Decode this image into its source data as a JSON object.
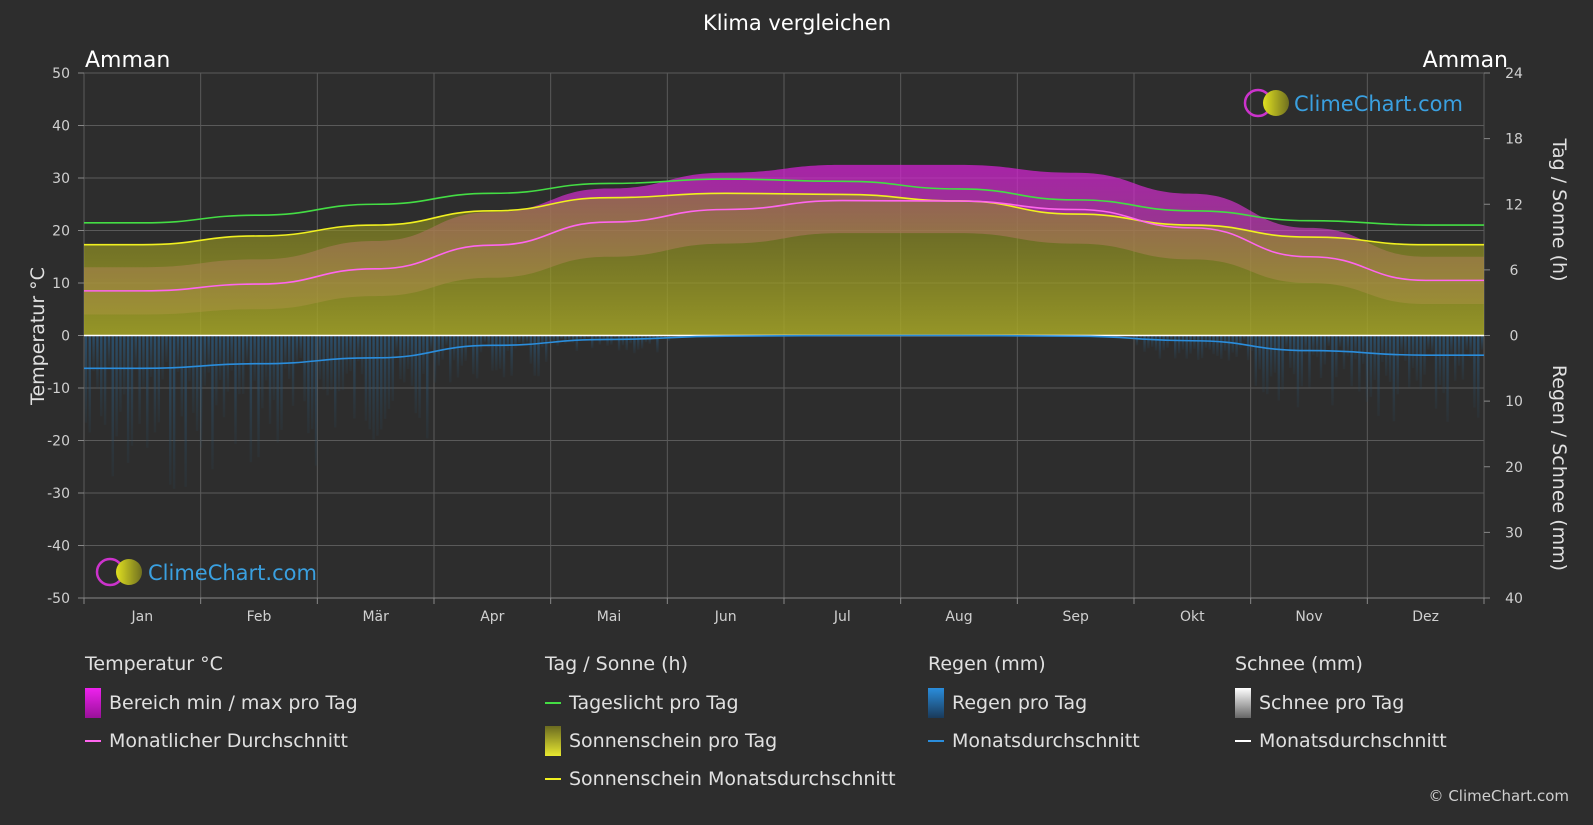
{
  "title": "Klima vergleichen",
  "location_left": "Amman",
  "location_right": "Amman",
  "watermark": "ClimeChart.com",
  "copyright": "© ClimeChart.com",
  "colors": {
    "background": "#2d2d2d",
    "daylight": "#44dd44",
    "sunshine_avg": "#f0f020",
    "temp_avg": "#ff66ee",
    "rain_avg": "#2a8ddc",
    "snow_avg": "#ffffff",
    "temp_range": "#cc22cc",
    "sunshine_fill": "#9a9a22",
    "rain_fill": "#2c5c7c",
    "brand": "#3aa0e0"
  },
  "chart_data": {
    "type": "line",
    "title": "Klima vergleichen",
    "categories": [
      "Jan",
      "Feb",
      "Mär",
      "Apr",
      "Mai",
      "Jun",
      "Jul",
      "Aug",
      "Sep",
      "Okt",
      "Nov",
      "Dez"
    ],
    "y_left": {
      "label": "Temperatur °C",
      "range": [
        -50,
        50
      ],
      "ticks": [
        50,
        40,
        30,
        20,
        10,
        0,
        -10,
        -20,
        -30,
        -40,
        -50
      ]
    },
    "y_right_top": {
      "label": "Tag / Sonne (h)",
      "range": [
        0,
        24
      ],
      "ticks": [
        24,
        18,
        12,
        6,
        0
      ]
    },
    "y_right_bottom": {
      "label": "Regen / Schnee (mm)",
      "range": [
        0,
        40
      ],
      "ticks": [
        0,
        10,
        20,
        30,
        40
      ]
    },
    "grid": true,
    "series": [
      {
        "name": "Tageslicht pro Tag",
        "axis": "hours",
        "values": [
          10.3,
          11.0,
          12.0,
          13.0,
          13.9,
          14.3,
          14.1,
          13.4,
          12.4,
          11.4,
          10.5,
          10.1
        ]
      },
      {
        "name": "Sonnenschein Monatsdurchschnitt",
        "axis": "hours",
        "values": [
          8.3,
          9.1,
          10.1,
          11.4,
          12.6,
          13.0,
          12.9,
          12.3,
          11.1,
          10.1,
          9.0,
          8.3
        ]
      },
      {
        "name": "Monatlicher Durchschnitt",
        "axis": "temp",
        "values": [
          8.5,
          9.8,
          12.7,
          17.2,
          21.6,
          24.0,
          25.7,
          25.6,
          24.0,
          20.5,
          15.0,
          10.5
        ]
      },
      {
        "name": "Regen Monatsdurchschnitt",
        "axis": "rain",
        "values": [
          5.0,
          4.3,
          3.4,
          1.5,
          0.6,
          0.1,
          0.0,
          0.0,
          0.1,
          0.8,
          2.3,
          3.0
        ]
      },
      {
        "name": "Schnee Monatsdurchschnitt",
        "axis": "rain",
        "values": [
          0.1,
          0.1,
          0,
          0,
          0,
          0,
          0,
          0,
          0,
          0,
          0,
          0.05
        ]
      },
      {
        "name": "Temp max",
        "axis": "temp",
        "values": [
          13,
          14.5,
          18,
          23.5,
          28,
          31,
          32.5,
          32.5,
          31,
          27,
          20.5,
          15
        ]
      },
      {
        "name": "Temp min",
        "axis": "temp",
        "values": [
          4,
          5,
          7.5,
          11,
          15,
          17.5,
          19.5,
          19.5,
          17.5,
          14.5,
          10,
          6
        ]
      }
    ]
  },
  "legend": {
    "temp": {
      "title": "Temperatur °C",
      "range": "Bereich min / max pro Tag",
      "avg": "Monatlicher Durchschnitt"
    },
    "sun": {
      "title": "Tag / Sonne (h)",
      "daylight": "Tageslicht pro Tag",
      "sunshine": "Sonnenschein pro Tag",
      "sunavg": "Sonnenschein Monatsdurchschnitt"
    },
    "rain": {
      "title": "Regen (mm)",
      "day": "Regen pro Tag",
      "avg": "Monatsdurchschnitt"
    },
    "snow": {
      "title": "Schnee (mm)",
      "day": "Schnee pro Tag",
      "avg": "Monatsdurchschnitt"
    }
  }
}
